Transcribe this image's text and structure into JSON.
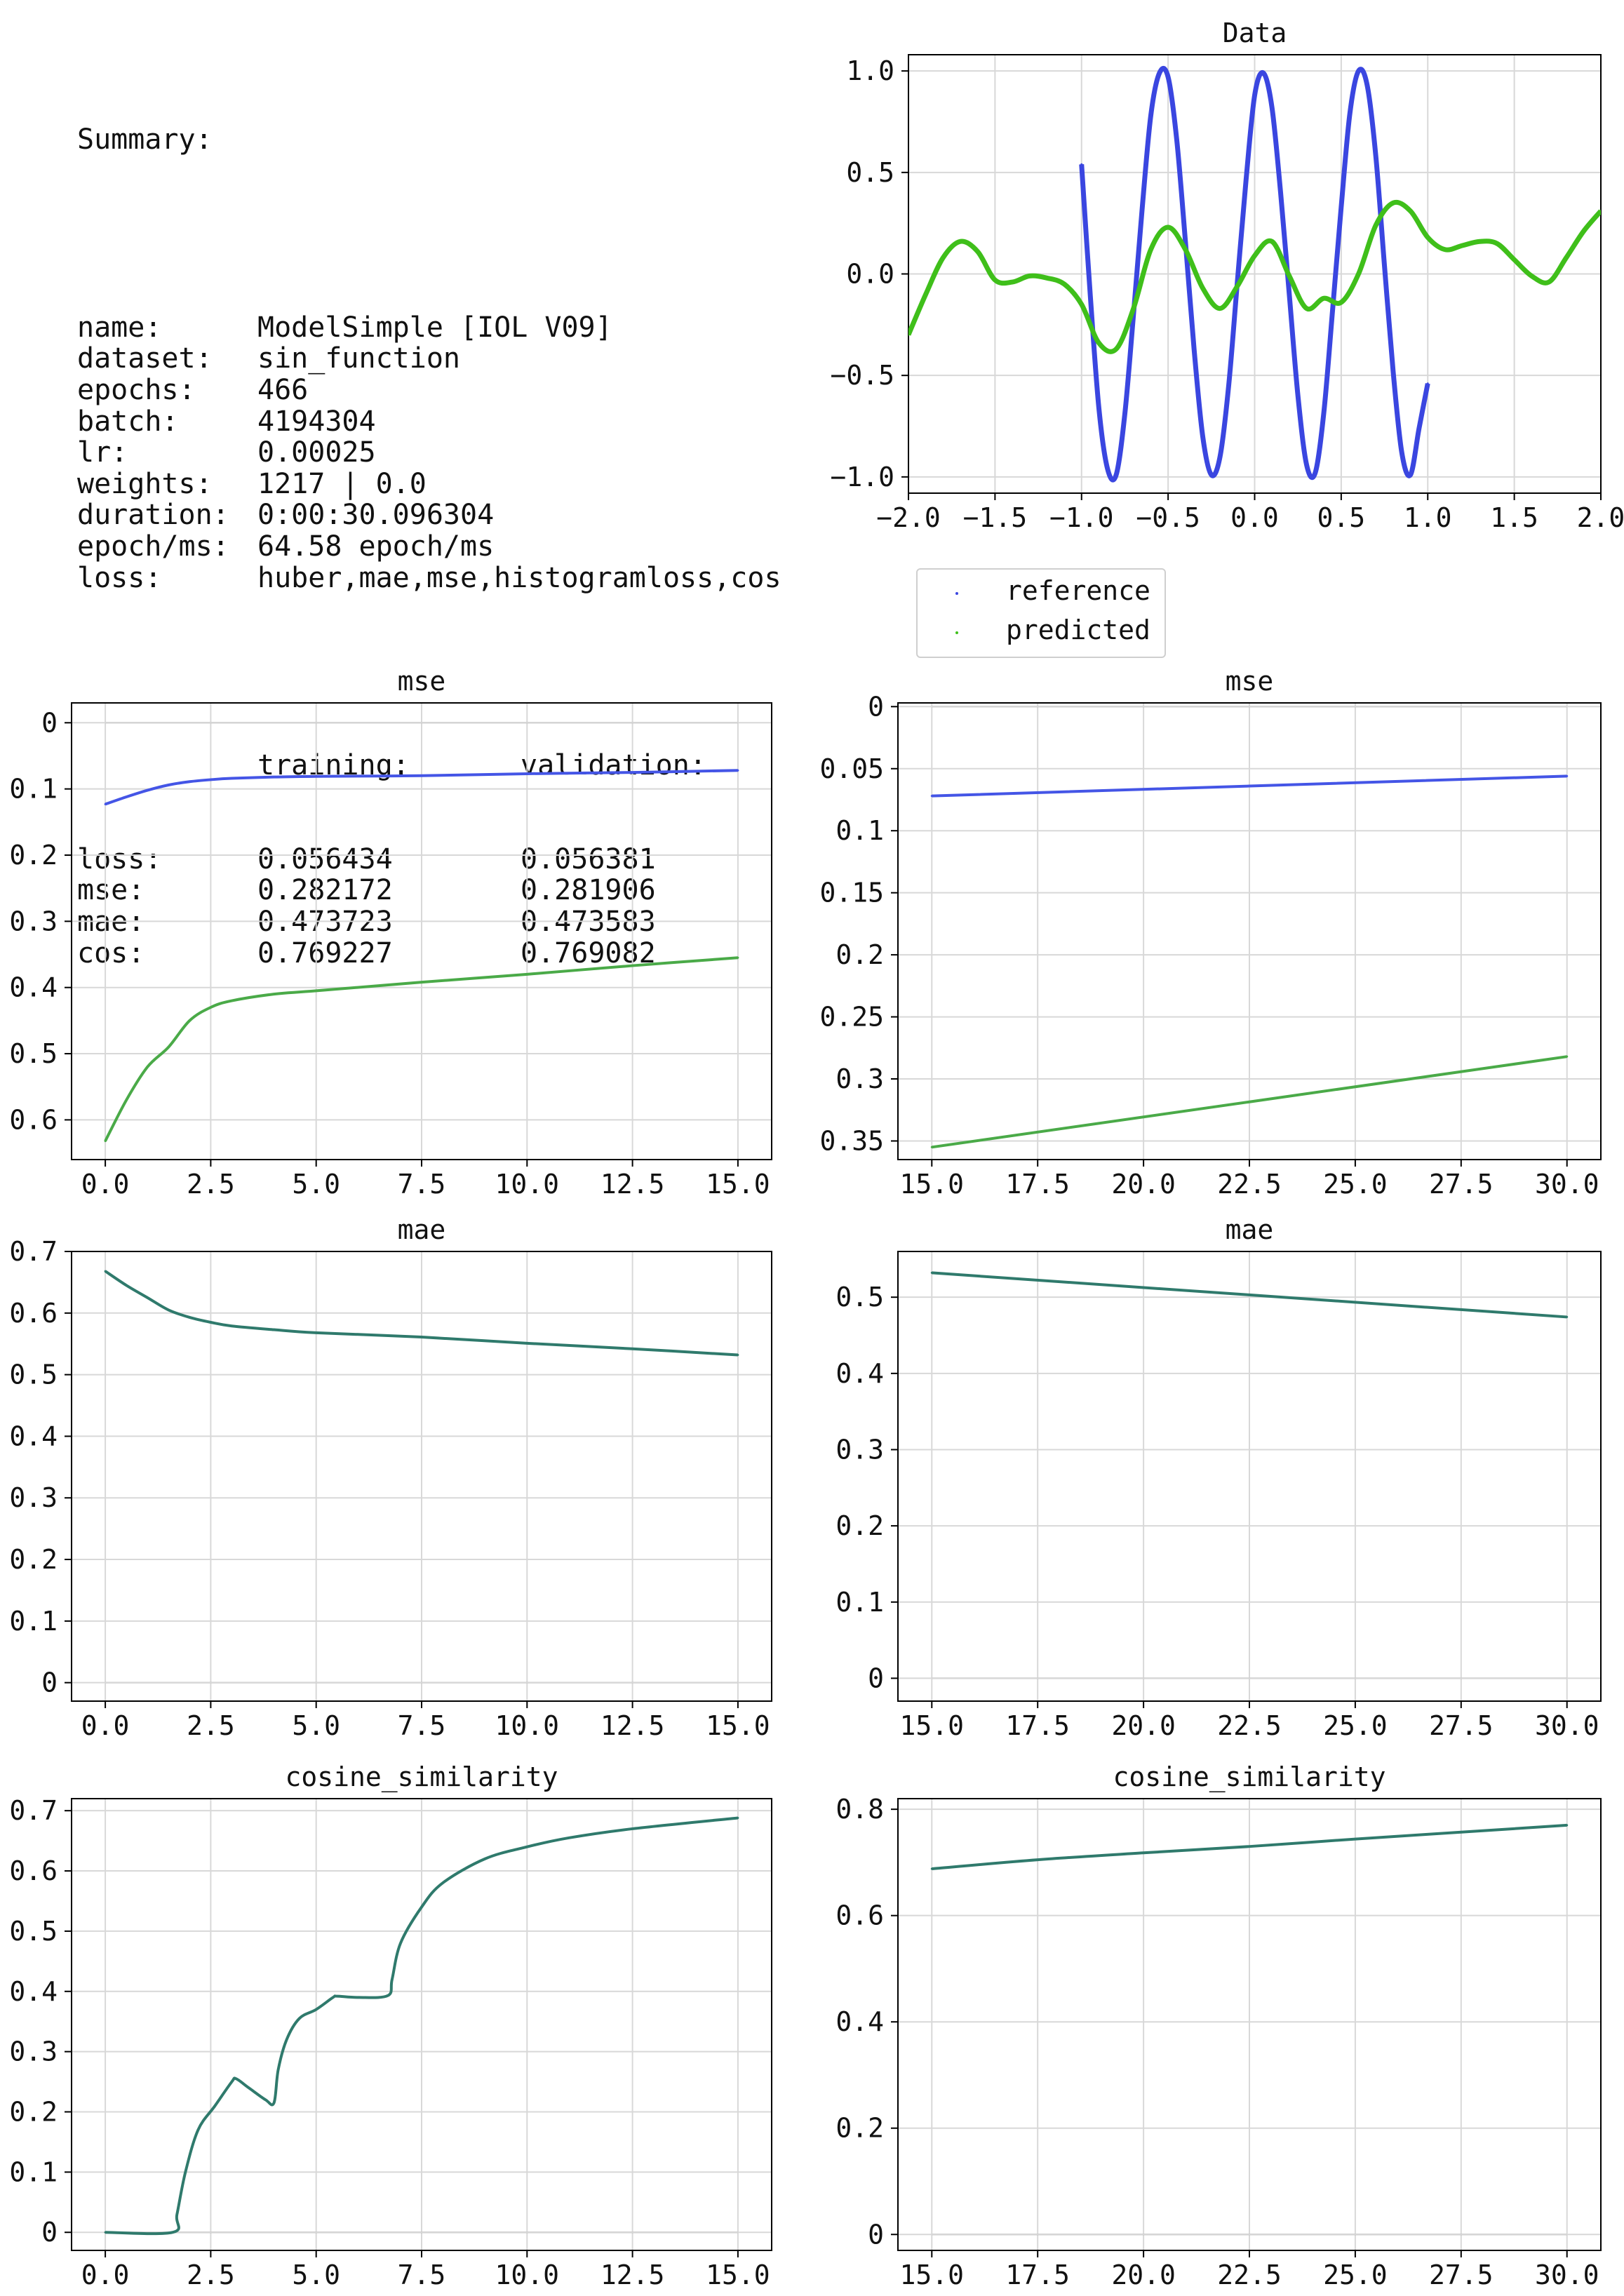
{
  "summary": {
    "title": "Summary:",
    "rows": [
      {
        "k": "name:",
        "v": "ModelSimple [IOL V09]"
      },
      {
        "k": "dataset:",
        "v": "sin_function"
      },
      {
        "k": "epochs:",
        "v": "466"
      },
      {
        "k": "batch:",
        "v": "4194304"
      },
      {
        "k": "lr:",
        "v": "0.00025"
      },
      {
        "k": "weights:",
        "v": "1217 | 0.0"
      },
      {
        "k": "duration:",
        "v": "0:00:30.096304"
      },
      {
        "k": "epoch/ms:",
        "v": "64.58 epoch/ms"
      },
      {
        "k": "loss:",
        "v": "huber,mae,mse,histogramloss,cos"
      }
    ],
    "metrics_header": {
      "training": "training:",
      "validation": "validation:"
    },
    "metrics": [
      {
        "k": "loss:",
        "training": "0.056434",
        "validation": "0.056381"
      },
      {
        "k": "mse:",
        "training": "0.282172",
        "validation": "0.281906"
      },
      {
        "k": "mae:",
        "training": "0.473723",
        "validation": "0.473583"
      },
      {
        "k": "cos:",
        "training": "0.769227",
        "validation": "0.769082"
      }
    ]
  },
  "legend": {
    "reference": "reference",
    "predicted": "predicted"
  },
  "colors": {
    "reference": "#3a46e0",
    "predicted": "#3fbf1a",
    "train_blue": "#4455e6",
    "train_green": "#4aaa48",
    "overlap": "#2f7a6c",
    "grid": "#d8d8d8",
    "zero_line": "#888888"
  },
  "chart_data": [
    {
      "id": "data",
      "type": "line",
      "title": "Data",
      "xlim": [
        -2.0,
        2.0
      ],
      "ylim": [
        -1.08,
        1.08
      ],
      "xticks": [
        "-2.0",
        "-1.5",
        "-1.0",
        "-0.5",
        "0.0",
        "0.5",
        "1.0",
        "1.5",
        "2.0"
      ],
      "yticks": [
        "1.0",
        "0.5",
        "0.0",
        "-0.5",
        "-1.0"
      ],
      "series": [
        {
          "name": "reference",
          "x": [
            -1.0,
            -0.95,
            -0.9,
            -0.85,
            -0.8,
            -0.75,
            -0.7,
            -0.65,
            -0.6,
            -0.55,
            -0.5,
            -0.45,
            -0.4,
            -0.35,
            -0.3,
            -0.25,
            -0.2,
            -0.15,
            -0.1,
            -0.05,
            0.0,
            0.05,
            0.1,
            0.15,
            0.2,
            0.25,
            0.3,
            0.35,
            0.4,
            0.45,
            0.5,
            0.55,
            0.6,
            0.65,
            0.7,
            0.75,
            0.8,
            0.85,
            0.9,
            0.95,
            1.0
          ],
          "y": [
            0.54,
            -0.1,
            -0.66,
            -0.96,
            -0.99,
            -0.69,
            -0.2,
            0.32,
            0.78,
            0.99,
            0.97,
            0.66,
            0.16,
            -0.37,
            -0.8,
            -0.99,
            -0.9,
            -0.55,
            -0.04,
            0.46,
            0.88,
            0.99,
            0.82,
            0.4,
            -0.1,
            -0.6,
            -0.94,
            -0.98,
            -0.68,
            -0.18,
            0.33,
            0.79,
            1.0,
            0.93,
            0.58,
            0.04,
            -0.48,
            -0.88,
            -0.99,
            -0.76,
            -0.54
          ]
        },
        {
          "name": "predicted",
          "x": [
            -2.0,
            -1.9,
            -1.8,
            -1.7,
            -1.6,
            -1.5,
            -1.4,
            -1.3,
            -1.2,
            -1.1,
            -1.0,
            -0.9,
            -0.8,
            -0.7,
            -0.6,
            -0.5,
            -0.4,
            -0.3,
            -0.2,
            -0.1,
            0.0,
            0.1,
            0.2,
            0.3,
            0.4,
            0.5,
            0.6,
            0.7,
            0.8,
            0.9,
            1.0,
            1.1,
            1.2,
            1.3,
            1.4,
            1.5,
            1.6,
            1.7,
            1.8,
            1.9,
            2.0
          ],
          "y": [
            -0.3,
            -0.1,
            0.08,
            0.16,
            0.11,
            -0.03,
            -0.04,
            -0.01,
            -0.02,
            -0.05,
            -0.15,
            -0.34,
            -0.37,
            -0.17,
            0.12,
            0.23,
            0.12,
            -0.07,
            -0.17,
            -0.06,
            0.09,
            0.16,
            -0.01,
            -0.17,
            -0.12,
            -0.14,
            0.0,
            0.24,
            0.35,
            0.31,
            0.18,
            0.12,
            0.14,
            0.16,
            0.15,
            0.07,
            -0.01,
            -0.04,
            0.08,
            0.21,
            0.31
          ]
        }
      ]
    },
    {
      "id": "mse_a",
      "type": "line",
      "title": "mse",
      "xlim": [
        -0.8,
        15.8
      ],
      "ylim": [
        0.66,
        -0.03
      ],
      "xticks": [
        "0.0",
        "2.5",
        "5.0",
        "7.5",
        "10.0",
        "12.5",
        "15.0"
      ],
      "yticks": [
        "0",
        "0.1",
        "0.2",
        "0.3",
        "0.4",
        "0.5",
        "0.6"
      ],
      "series": [
        {
          "name": "",
          "x": [
            0,
            0.5,
            1,
            1.5,
            2,
            2.5,
            3,
            4,
            5,
            7.5,
            10,
            12.5,
            15
          ],
          "y": [
            0.123,
            0.112,
            0.102,
            0.094,
            0.089,
            0.086,
            0.084,
            0.082,
            0.081,
            0.08,
            0.077,
            0.075,
            0.072
          ]
        },
        {
          "name": "",
          "x": [
            0,
            0.5,
            1,
            1.5,
            2,
            2.5,
            3,
            4,
            5,
            7.5,
            10,
            12.5,
            15
          ],
          "y": [
            0.632,
            0.57,
            0.52,
            0.49,
            0.45,
            0.43,
            0.42,
            0.41,
            0.405,
            0.392,
            0.38,
            0.367,
            0.355
          ]
        }
      ]
    },
    {
      "id": "mse_b",
      "type": "line",
      "title": "mse",
      "xlim": [
        14.2,
        30.8
      ],
      "ylim": [
        0.365,
        -0.003
      ],
      "xticks": [
        "15.0",
        "17.5",
        "20.0",
        "22.5",
        "25.0",
        "27.5",
        "30.0"
      ],
      "yticks": [
        "0",
        "0.05",
        "0.1",
        "0.15",
        "0.2",
        "0.25",
        "0.3",
        "0.35"
      ],
      "series": [
        {
          "name": "",
          "x": [
            15,
            30
          ],
          "y": [
            0.072,
            0.056
          ]
        },
        {
          "name": "",
          "x": [
            15,
            30
          ],
          "y": [
            0.355,
            0.282
          ]
        }
      ]
    },
    {
      "id": "mae_a",
      "type": "line",
      "title": "mae",
      "xlim": [
        -0.8,
        15.8
      ],
      "ylim": [
        -0.03,
        0.7
      ],
      "xticks": [
        "0.0",
        "2.5",
        "5.0",
        "7.5",
        "10.0",
        "12.5",
        "15.0"
      ],
      "yticks": [
        "0.7",
        "0.6",
        "0.5",
        "0.4",
        "0.3",
        "0.2",
        "0.1",
        "0"
      ],
      "series": [
        {
          "name": "",
          "x": [
            0,
            0.5,
            1,
            1.5,
            2,
            2.5,
            3,
            4,
            5,
            7.5,
            10,
            12.5,
            15
          ],
          "y": [
            0.668,
            0.645,
            0.625,
            0.605,
            0.593,
            0.585,
            0.579,
            0.573,
            0.568,
            0.561,
            0.551,
            0.542,
            0.532
          ]
        }
      ]
    },
    {
      "id": "mae_b",
      "type": "line",
      "title": "mae",
      "xlim": [
        14.2,
        30.8
      ],
      "ylim": [
        -0.03,
        0.56
      ],
      "xticks": [
        "15.0",
        "17.5",
        "20.0",
        "22.5",
        "25.0",
        "27.5",
        "30.0"
      ],
      "yticks": [
        "0.5",
        "0.4",
        "0.3",
        "0.2",
        "0.1",
        "0"
      ],
      "series": [
        {
          "name": "",
          "x": [
            15,
            30
          ],
          "y": [
            0.532,
            0.474
          ]
        }
      ]
    },
    {
      "id": "cos_a",
      "type": "line",
      "title": "cosine_similarity",
      "xlim": [
        -0.8,
        15.8
      ],
      "ylim": [
        -0.03,
        0.72
      ],
      "xticks": [
        "0.0",
        "2.5",
        "5.0",
        "7.5",
        "10.0",
        "12.5",
        "15.0"
      ],
      "yticks": [
        "0.7",
        "0.6",
        "0.5",
        "0.4",
        "0.3",
        "0.2",
        "0.1",
        "0"
      ],
      "series": [
        {
          "name": "",
          "x": [
            0,
            1.6,
            1.7,
            1.9,
            2.2,
            2.6,
            3.0,
            3.1,
            3.4,
            3.8,
            4.0,
            4.1,
            4.3,
            4.6,
            5.0,
            5.4,
            5.5,
            6.0,
            6.7,
            6.8,
            7.0,
            7.5,
            8.0,
            9.0,
            10.0,
            11.0,
            12.5,
            15.0
          ],
          "y": [
            0.0,
            0.0,
            0.03,
            0.1,
            0.17,
            0.21,
            0.25,
            0.255,
            0.24,
            0.22,
            0.215,
            0.27,
            0.32,
            0.355,
            0.37,
            0.39,
            0.392,
            0.39,
            0.393,
            0.42,
            0.48,
            0.54,
            0.58,
            0.62,
            0.64,
            0.655,
            0.67,
            0.688
          ]
        }
      ]
    },
    {
      "id": "cos_b",
      "type": "line",
      "title": "cosine_similarity",
      "xlim": [
        14.2,
        30.8
      ],
      "ylim": [
        -0.03,
        0.82
      ],
      "xticks": [
        "15.0",
        "17.5",
        "20.0",
        "22.5",
        "25.0",
        "27.5",
        "30.0"
      ],
      "yticks": [
        "0.8",
        "0.6",
        "0.4",
        "0.2",
        "0"
      ],
      "series": [
        {
          "name": "",
          "x": [
            15,
            17.5,
            20,
            22.5,
            25,
            27.5,
            30
          ],
          "y": [
            0.688,
            0.705,
            0.718,
            0.73,
            0.744,
            0.757,
            0.77
          ]
        }
      ]
    }
  ]
}
